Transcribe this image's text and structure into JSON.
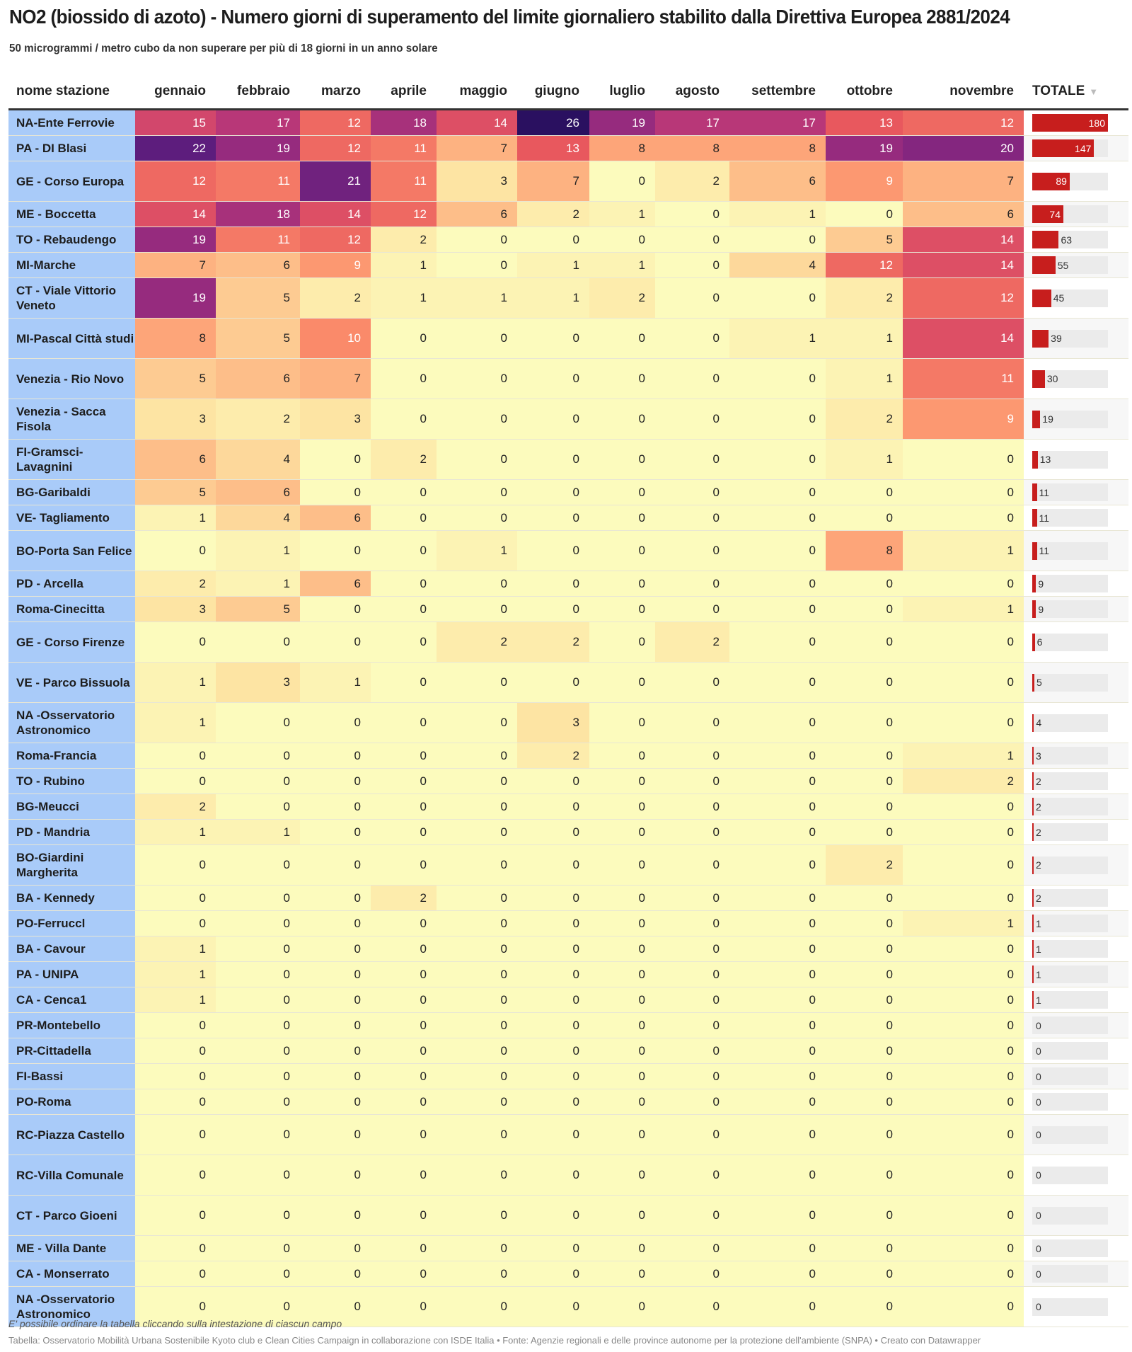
{
  "header": {
    "title": "NO2 (biossido di azoto) - Numero giorni di superamento del limite giornaliero stabilito dalla Direttiva Europea 2881/2024",
    "subtitle": "50 microgrammi / metro cubo da non superare per più di 18 giorni in un anno solare"
  },
  "table": {
    "name_header": "nome stazione",
    "total_header": "TOTALE",
    "sort_icon": "triangle-down-icon",
    "month_headers": [
      "gennaio",
      "febbraio",
      "marzo",
      "aprile",
      "maggio",
      "giugno",
      "luglio",
      "agosto",
      "settembre",
      "ottobre",
      "novembre"
    ]
  },
  "footer": {
    "note": "E' possibile ordinare la tabella cliccando sulla intestazione di ciascun campo",
    "source": "Tabella: Osservatorio Mobilità Urbana Sostenibile Kyoto club e Clean Cities Campaign in collaborazione con ISDE Italia • Fonte: Agenzie regionali e delle province autonome per la protezione dell'ambiente (SNPA) • Creato con Datawrapper"
  },
  "colors": {
    "name_column": "#a9cbf9",
    "total_bar": "#c71e1d",
    "total_track": "#ebebeb",
    "scale": [
      "#fcfbbd",
      "#fde2a1",
      "#fdb885",
      "#fc8e6b",
      "#e8585e",
      "#c43c75",
      "#8e2880",
      "#4e1a7c",
      "#2a1060"
    ]
  },
  "chart_data": {
    "type": "heatmap",
    "title": "NO2 (biossido di azoto) - Numero giorni di superamento del limite giornaliero stabilito dalla Direttiva Europea 2881/2024",
    "subtitle": "50 microgrammi / metro cubo da non superare per più di 18 giorni in un anno solare",
    "columns": [
      "gennaio",
      "febbraio",
      "marzo",
      "aprile",
      "maggio",
      "giugno",
      "luglio",
      "agosto",
      "settembre",
      "ottobre",
      "novembre"
    ],
    "value_range": [
      0,
      26
    ],
    "total_range": [
      0,
      180
    ],
    "sorted_by": "TOTALE",
    "sort_order": "descending",
    "rows": [
      {
        "name": "NA-Ente Ferrovie",
        "values": [
          15,
          17,
          12,
          18,
          14,
          26,
          19,
          17,
          17,
          13,
          12
        ],
        "total": 180
      },
      {
        "name": "PA - DI Blasi",
        "values": [
          22,
          19,
          12,
          11,
          7,
          13,
          8,
          8,
          8,
          19,
          20
        ],
        "total": 147
      },
      {
        "name": "GE - Corso Europa",
        "values": [
          12,
          11,
          21,
          11,
          3,
          7,
          0,
          2,
          6,
          9,
          7
        ],
        "total": 89
      },
      {
        "name": "ME - Boccetta",
        "values": [
          14,
          18,
          14,
          12,
          6,
          2,
          1,
          0,
          1,
          0,
          6
        ],
        "total": 74
      },
      {
        "name": "TO - Rebaudengo",
        "values": [
          19,
          11,
          12,
          2,
          0,
          0,
          0,
          0,
          0,
          5,
          14
        ],
        "total": 63
      },
      {
        "name": "MI-Marche",
        "values": [
          7,
          6,
          9,
          1,
          0,
          1,
          1,
          0,
          4,
          12,
          14
        ],
        "total": 55
      },
      {
        "name": "CT - Viale Vittorio Veneto",
        "values": [
          19,
          5,
          2,
          1,
          1,
          1,
          2,
          0,
          0,
          2,
          12
        ],
        "total": 45
      },
      {
        "name": "MI-Pascal Città studi",
        "values": [
          8,
          5,
          10,
          0,
          0,
          0,
          0,
          0,
          1,
          1,
          14
        ],
        "total": 39
      },
      {
        "name": "Venezia - Rio Novo",
        "values": [
          5,
          6,
          7,
          0,
          0,
          0,
          0,
          0,
          0,
          1,
          11
        ],
        "total": 30
      },
      {
        "name": "Venezia - Sacca Fisola",
        "values": [
          3,
          2,
          3,
          0,
          0,
          0,
          0,
          0,
          0,
          2,
          9
        ],
        "total": 19
      },
      {
        "name": "FI-Gramsci-Lavagnini",
        "values": [
          6,
          4,
          0,
          2,
          0,
          0,
          0,
          0,
          0,
          1,
          0
        ],
        "total": 13
      },
      {
        "name": "BG-Garibaldi",
        "values": [
          5,
          6,
          0,
          0,
          0,
          0,
          0,
          0,
          0,
          0,
          0
        ],
        "total": 11
      },
      {
        "name": "VE- Tagliamento",
        "values": [
          1,
          4,
          6,
          0,
          0,
          0,
          0,
          0,
          0,
          0,
          0
        ],
        "total": 11
      },
      {
        "name": "BO-Porta San Felice",
        "values": [
          0,
          1,
          0,
          0,
          1,
          0,
          0,
          0,
          0,
          8,
          1
        ],
        "total": 11
      },
      {
        "name": "PD - Arcella",
        "values": [
          2,
          1,
          6,
          0,
          0,
          0,
          0,
          0,
          0,
          0,
          0
        ],
        "total": 9
      },
      {
        "name": "Roma-Cinecitta",
        "values": [
          3,
          5,
          0,
          0,
          0,
          0,
          0,
          0,
          0,
          0,
          1
        ],
        "total": 9
      },
      {
        "name": "GE - Corso Firenze",
        "values": [
          0,
          0,
          0,
          0,
          2,
          2,
          0,
          2,
          0,
          0,
          0
        ],
        "total": 6
      },
      {
        "name": "VE - Parco Bissuola",
        "values": [
          1,
          3,
          1,
          0,
          0,
          0,
          0,
          0,
          0,
          0,
          0
        ],
        "total": 5
      },
      {
        "name": "NA -Osservatorio Astronomico",
        "values": [
          1,
          0,
          0,
          0,
          0,
          3,
          0,
          0,
          0,
          0,
          0
        ],
        "total": 4
      },
      {
        "name": "Roma-Francia",
        "values": [
          0,
          0,
          0,
          0,
          0,
          2,
          0,
          0,
          0,
          0,
          1
        ],
        "total": 3
      },
      {
        "name": "TO - Rubino",
        "values": [
          0,
          0,
          0,
          0,
          0,
          0,
          0,
          0,
          0,
          0,
          2
        ],
        "total": 2
      },
      {
        "name": "BG-Meucci",
        "values": [
          2,
          0,
          0,
          0,
          0,
          0,
          0,
          0,
          0,
          0,
          0
        ],
        "total": 2
      },
      {
        "name": "PD - Mandria",
        "values": [
          1,
          1,
          0,
          0,
          0,
          0,
          0,
          0,
          0,
          0,
          0
        ],
        "total": 2
      },
      {
        "name": "BO-Giardini Margherita",
        "values": [
          0,
          0,
          0,
          0,
          0,
          0,
          0,
          0,
          0,
          2,
          0
        ],
        "total": 2
      },
      {
        "name": "BA - Kennedy",
        "values": [
          0,
          0,
          0,
          2,
          0,
          0,
          0,
          0,
          0,
          0,
          0
        ],
        "total": 2
      },
      {
        "name": "PO-Ferruccl",
        "values": [
          0,
          0,
          0,
          0,
          0,
          0,
          0,
          0,
          0,
          0,
          1
        ],
        "total": 1
      },
      {
        "name": "BA - Cavour",
        "values": [
          1,
          0,
          0,
          0,
          0,
          0,
          0,
          0,
          0,
          0,
          0
        ],
        "total": 1
      },
      {
        "name": "PA - UNIPA",
        "values": [
          1,
          0,
          0,
          0,
          0,
          0,
          0,
          0,
          0,
          0,
          0
        ],
        "total": 1
      },
      {
        "name": "CA - Cenca1",
        "values": [
          1,
          0,
          0,
          0,
          0,
          0,
          0,
          0,
          0,
          0,
          0
        ],
        "total": 1
      },
      {
        "name": "PR-Montebello",
        "values": [
          0,
          0,
          0,
          0,
          0,
          0,
          0,
          0,
          0,
          0,
          0
        ],
        "total": 0
      },
      {
        "name": "PR-Cittadella",
        "values": [
          0,
          0,
          0,
          0,
          0,
          0,
          0,
          0,
          0,
          0,
          0
        ],
        "total": 0
      },
      {
        "name": "FI-Bassi",
        "values": [
          0,
          0,
          0,
          0,
          0,
          0,
          0,
          0,
          0,
          0,
          0
        ],
        "total": 0
      },
      {
        "name": "PO-Roma",
        "values": [
          0,
          0,
          0,
          0,
          0,
          0,
          0,
          0,
          0,
          0,
          0
        ],
        "total": 0
      },
      {
        "name": "RC-Piazza Castello",
        "values": [
          0,
          0,
          0,
          0,
          0,
          0,
          0,
          0,
          0,
          0,
          0
        ],
        "total": 0
      },
      {
        "name": "RC-Villa Comunale",
        "values": [
          0,
          0,
          0,
          0,
          0,
          0,
          0,
          0,
          0,
          0,
          0
        ],
        "total": 0
      },
      {
        "name": "CT - Parco Gioeni",
        "values": [
          0,
          0,
          0,
          0,
          0,
          0,
          0,
          0,
          0,
          0,
          0
        ],
        "total": 0
      },
      {
        "name": "ME - Villa Dante",
        "values": [
          0,
          0,
          0,
          0,
          0,
          0,
          0,
          0,
          0,
          0,
          0
        ],
        "total": 0
      },
      {
        "name": "CA - Monserrato",
        "values": [
          0,
          0,
          0,
          0,
          0,
          0,
          0,
          0,
          0,
          0,
          0
        ],
        "total": 0
      },
      {
        "name": "NA -Osservatorio Astronomico",
        "values": [
          0,
          0,
          0,
          0,
          0,
          0,
          0,
          0,
          0,
          0,
          0
        ],
        "total": 0
      }
    ]
  }
}
